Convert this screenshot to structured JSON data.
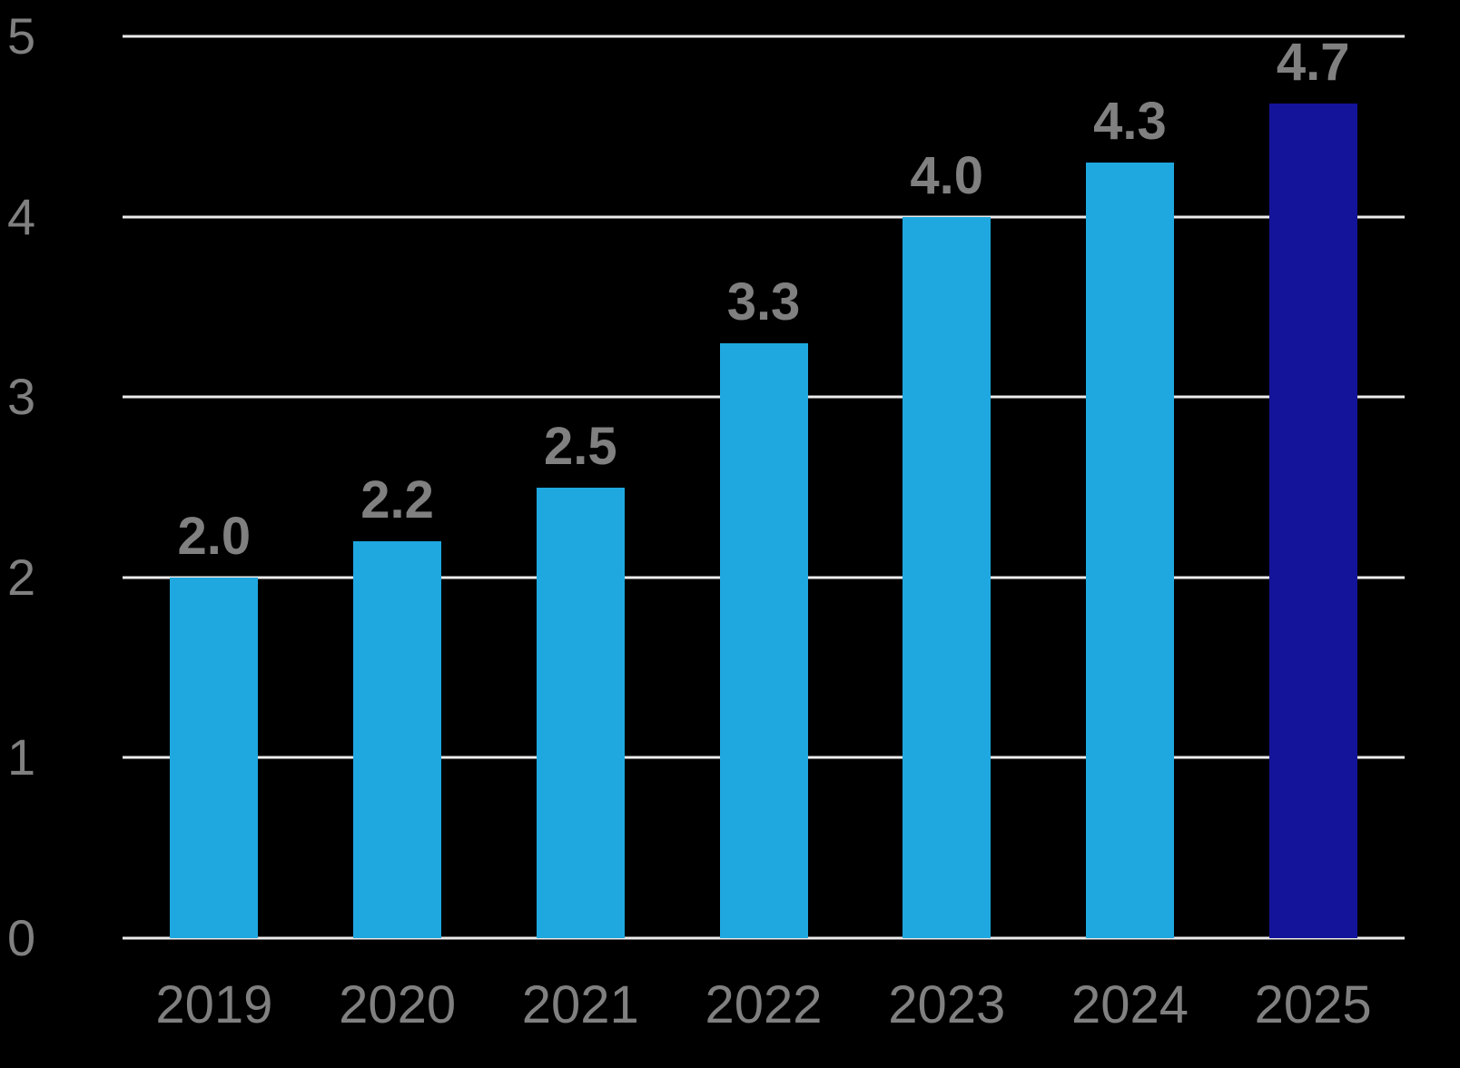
{
  "chart_data": {
    "type": "bar",
    "categories": [
      "2019",
      "2020",
      "2021",
      "2022",
      "2023",
      "2024",
      "2025"
    ],
    "values": [
      2.0,
      2.2,
      2.5,
      3.3,
      4.0,
      4.3,
      4.7
    ],
    "value_labels": [
      "2.0",
      "2.2",
      "2.5",
      "3.3",
      "4.0",
      "4.3",
      "4.7"
    ],
    "title": "",
    "xlabel": "",
    "ylabel": "",
    "ylim": [
      0,
      5
    ],
    "yticks": [
      "0",
      "1",
      "2",
      "3",
      "4",
      "5"
    ],
    "grid": true,
    "legend_position": "none",
    "bar_color": "#1FA8E0",
    "highlight_bar_color": "#14149B",
    "highlight_index": 6,
    "label_color": "#808080",
    "gridline_color": "#ECECEC",
    "background_color": "#000000"
  }
}
